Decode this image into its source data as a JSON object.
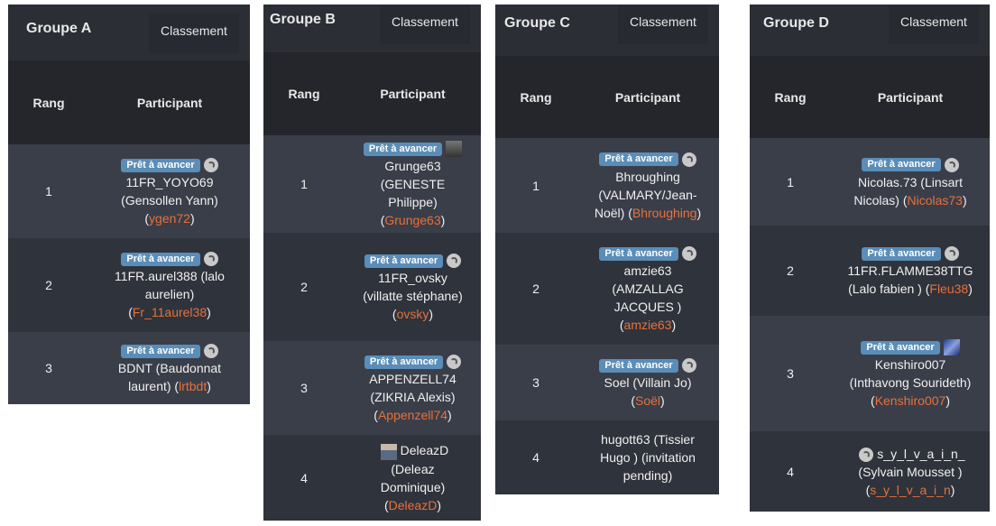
{
  "colors": {
    "badge": "#5a8db8",
    "link": "#e8703a",
    "row_odd": "#3a3e49",
    "row_even": "#2f333b"
  },
  "headers": {
    "rank": "Rang",
    "participant": "Participant",
    "tab": "Classement",
    "badge": "Prêt à avancer"
  },
  "groups": [
    {
      "title": "Groupe A",
      "rows": [
        {
          "rank": "1",
          "badge": true,
          "icon": "game-icon",
          "text": "11FR_YOYO69 (Gensollen Yann) (",
          "link": "ygen72",
          "after": ")"
        },
        {
          "rank": "2",
          "badge": true,
          "icon": "game-icon",
          "text": "11FR.aurel388 (lalo aurelien) (",
          "link": "Fr_11aurel38",
          "after": ")"
        },
        {
          "rank": "3",
          "badge": true,
          "icon": "game-icon",
          "text": "BDNT (Baudonnat laurent) (",
          "link": "lrtbdt",
          "after": ")"
        }
      ]
    },
    {
      "title": "Groupe B",
      "rows": [
        {
          "rank": "1",
          "badge": true,
          "icon": "avatar-photo",
          "text": "Grunge63 (GENESTE Philippe) (",
          "link": "Grunge63",
          "after": ")"
        },
        {
          "rank": "2",
          "badge": true,
          "icon": "game-icon",
          "text": "11FR_ovsky (villatte stéphane) (",
          "link": "ovsky",
          "after": ")"
        },
        {
          "rank": "3",
          "badge": true,
          "icon": "game-icon",
          "text": "APPENZELL74 (ZIKRIA Alexis) (",
          "link": "Appenzell74",
          "after": ")"
        },
        {
          "rank": "4",
          "badge": false,
          "icon": "avatar-person",
          "text": "DeleazD (Deleaz Dominique) (",
          "link": "DeleazD",
          "after": ")"
        }
      ]
    },
    {
      "title": "Groupe C",
      "rows": [
        {
          "rank": "1",
          "badge": true,
          "icon": "game-icon",
          "text": "Bhroughing (VALMARY/Jean-Noël) (",
          "link": "Bhroughing",
          "after": ")"
        },
        {
          "rank": "2",
          "badge": true,
          "icon": "game-icon",
          "text": "amzie63 (AMZALLAG JACQUES ) (",
          "link": "amzie63",
          "after": ")"
        },
        {
          "rank": "3",
          "badge": true,
          "icon": "game-icon",
          "text": "Soel (Villain Jo) (",
          "link": "Soël",
          "after": ")"
        },
        {
          "rank": "4",
          "badge": false,
          "icon": "",
          "text": "hugott63 (Tissier Hugo ) (invitation pending)",
          "link": "",
          "after": ""
        }
      ]
    },
    {
      "title": "Groupe D",
      "rows": [
        {
          "rank": "1",
          "badge": true,
          "icon": "game-icon",
          "text": "Nicolas.73 (Linsart Nicolas) (",
          "link": "Nicolas73",
          "after": ")"
        },
        {
          "rank": "2",
          "badge": true,
          "icon": "game-icon",
          "text": "11FR.FLAMME38TTG (Lalo fabien ) (",
          "link": "Fleu38",
          "after": ")"
        },
        {
          "rank": "3",
          "badge": true,
          "icon": "avatar-photo",
          "text": "Kenshiro007 (Inthavong Sourideth) (",
          "link": "Kenshiro007",
          "after": ")"
        },
        {
          "rank": "4",
          "badge": false,
          "icon": "game-icon",
          "text": "s_y_l_v_a_i_n_ (Sylvain Mousset ) (",
          "link": "s_y_l_v_a_i_n",
          "after": ")"
        }
      ]
    }
  ]
}
